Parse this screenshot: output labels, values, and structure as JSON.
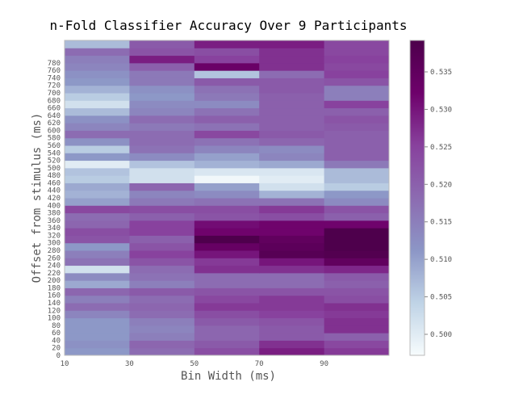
{
  "chart_data": {
    "type": "heatmap",
    "title": "n-Fold Classifier Accuracy Over 9 Participants",
    "xlabel": "Bin Width (ms)",
    "ylabel": "Offset from stimulus (ms)",
    "x_edges": [
      10,
      30,
      50,
      70,
      90,
      110
    ],
    "x_ticks": [
      10,
      30,
      50,
      70,
      90
    ],
    "y_ticks": [
      0,
      20,
      40,
      60,
      80,
      100,
      120,
      140,
      160,
      180,
      200,
      220,
      240,
      260,
      280,
      300,
      320,
      340,
      360,
      380,
      400,
      420,
      440,
      460,
      480,
      500,
      520,
      540,
      560,
      580,
      600,
      620,
      640,
      660,
      680,
      700,
      720,
      740,
      760,
      780
    ],
    "y_start": 0,
    "y_step": 20,
    "colorbar": {
      "min": 0.4972,
      "max": 0.5392,
      "ticks": [
        0.5,
        0.505,
        0.51,
        0.515,
        0.52,
        0.525,
        0.53,
        0.535
      ]
    },
    "colormap": [
      "#f7fcfd",
      "#bfd3e6",
      "#8c96c6",
      "#8c6bb1",
      "#88419d",
      "#6e016b",
      "#4d004b"
    ],
    "values": [
      [
        0.511,
        0.518,
        0.523,
        0.529,
        0.526
      ],
      [
        0.512,
        0.519,
        0.521,
        0.527,
        0.524
      ],
      [
        0.511,
        0.515,
        0.519,
        0.521,
        0.52
      ],
      [
        0.511,
        0.514,
        0.519,
        0.521,
        0.527
      ],
      [
        0.511,
        0.515,
        0.521,
        0.522,
        0.527
      ],
      [
        0.514,
        0.518,
        0.523,
        0.525,
        0.526
      ],
      [
        0.518,
        0.519,
        0.526,
        0.526,
        0.527
      ],
      [
        0.515,
        0.518,
        0.524,
        0.526,
        0.523
      ],
      [
        0.519,
        0.521,
        0.522,
        0.522,
        0.522
      ],
      [
        0.509,
        0.515,
        0.518,
        0.518,
        0.52
      ],
      [
        0.513,
        0.517,
        0.518,
        0.518,
        0.521
      ],
      [
        0.502,
        0.518,
        0.527,
        0.527,
        0.528
      ],
      [
        0.517,
        0.522,
        0.526,
        0.53,
        0.535
      ],
      [
        0.515,
        0.525,
        0.53,
        0.537,
        0.538
      ],
      [
        0.511,
        0.522,
        0.534,
        0.536,
        0.539
      ],
      [
        0.522,
        0.52,
        0.539,
        0.535,
        0.539
      ],
      [
        0.523,
        0.525,
        0.532,
        0.532,
        0.539
      ],
      [
        0.519,
        0.525,
        0.531,
        0.532,
        0.532
      ],
      [
        0.518,
        0.52,
        0.522,
        0.523,
        0.52
      ],
      [
        0.524,
        0.523,
        0.523,
        0.526,
        0.522
      ],
      [
        0.51,
        0.516,
        0.517,
        0.517,
        0.513
      ],
      [
        0.508,
        0.514,
        0.513,
        0.508,
        0.511
      ],
      [
        0.509,
        0.519,
        0.51,
        0.502,
        0.505
      ],
      [
        0.505,
        0.502,
        0.498,
        0.5,
        0.507
      ],
      [
        0.506,
        0.502,
        0.501,
        0.501,
        0.507
      ],
      [
        0.5,
        0.506,
        0.508,
        0.509,
        0.516
      ],
      [
        0.511,
        0.513,
        0.51,
        0.514,
        0.52
      ],
      [
        0.505,
        0.517,
        0.514,
        0.513,
        0.52
      ],
      [
        0.512,
        0.518,
        0.517,
        0.519,
        0.52
      ],
      [
        0.518,
        0.518,
        0.524,
        0.521,
        0.52
      ],
      [
        0.514,
        0.516,
        0.517,
        0.52,
        0.521
      ],
      [
        0.512,
        0.518,
        0.52,
        0.52,
        0.522
      ],
      [
        0.507,
        0.514,
        0.517,
        0.52,
        0.52
      ],
      [
        0.502,
        0.513,
        0.513,
        0.52,
        0.525
      ],
      [
        0.505,
        0.511,
        0.516,
        0.52,
        0.515
      ],
      [
        0.508,
        0.512,
        0.517,
        0.521,
        0.515
      ],
      [
        0.511,
        0.516,
        0.521,
        0.521,
        0.522
      ],
      [
        0.512,
        0.516,
        0.506,
        0.518,
        0.525
      ],
      [
        0.514,
        0.52,
        0.533,
        0.527,
        0.524
      ],
      [
        0.515,
        0.529,
        0.525,
        0.527,
        0.525
      ],
      [
        0.518,
        0.522,
        0.523,
        0.527,
        0.524
      ],
      [
        0.507,
        0.521,
        0.529,
        0.529,
        0.524
      ]
    ]
  }
}
